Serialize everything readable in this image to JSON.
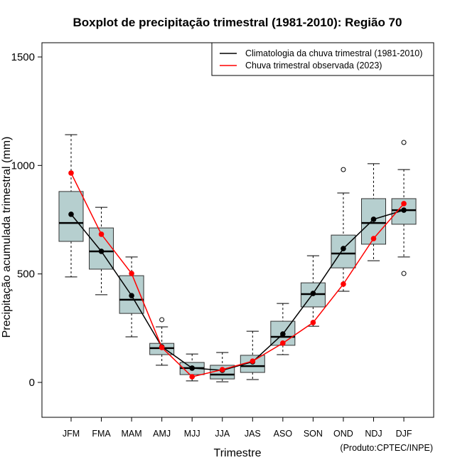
{
  "chart_data": {
    "type": "boxplot",
    "title": "Boxplot de precipitação trimestral (1981-2010): Região 70",
    "xlabel": "Trimestre",
    "ylabel": "Precipitação acumulada trimestral (mm)",
    "ylim": [
      -160,
      1560
    ],
    "yticks": [
      0,
      500,
      1000,
      1500
    ],
    "ytick_labels": [
      "0",
      "500",
      "1000",
      "1500"
    ],
    "grid": false,
    "legend_position": "top-right",
    "credit": "(Produto:CPTEC/INPE)",
    "categories": [
      "JFM",
      "FMA",
      "MAM",
      "AMJ",
      "MJJ",
      "JJA",
      "JAS",
      "ASO",
      "SON",
      "OND",
      "NDJ",
      "DJF"
    ],
    "boxes": [
      {
        "category": "JFM",
        "whisker_low": 486,
        "q1": 650,
        "median": 735,
        "q3": 880,
        "whisker_high": 1142,
        "outliers": []
      },
      {
        "category": "FMA",
        "whisker_low": 404,
        "q1": 522,
        "median": 604,
        "q3": 712,
        "whisker_high": 807,
        "outliers": []
      },
      {
        "category": "MAM",
        "whisker_low": 210,
        "q1": 318,
        "median": 381,
        "q3": 492,
        "whisker_high": 578,
        "outliers": []
      },
      {
        "category": "AMJ",
        "whisker_low": 79,
        "q1": 128,
        "median": 158,
        "q3": 180,
        "whisker_high": 256,
        "outliers": [
          289
        ]
      },
      {
        "category": "MJJ",
        "whisker_low": 7,
        "q1": 36,
        "median": 66,
        "q3": 92,
        "whisker_high": 131,
        "outliers": []
      },
      {
        "category": "JJA",
        "whisker_low": 3,
        "q1": 16,
        "median": 36,
        "q3": 79,
        "whisker_high": 138,
        "outliers": []
      },
      {
        "category": "JAS",
        "whisker_low": 13,
        "q1": 46,
        "median": 75,
        "q3": 125,
        "whisker_high": 236,
        "outliers": []
      },
      {
        "category": "ASO",
        "whisker_low": 128,
        "q1": 171,
        "median": 210,
        "q3": 282,
        "whisker_high": 364,
        "outliers": []
      },
      {
        "category": "SON",
        "whisker_low": 259,
        "q1": 348,
        "median": 407,
        "q3": 459,
        "whisker_high": 584,
        "outliers": []
      },
      {
        "category": "OND",
        "whisker_low": 420,
        "q1": 528,
        "median": 594,
        "q3": 679,
        "whisker_high": 873,
        "outliers": [
          981
        ]
      },
      {
        "category": "NDJ",
        "whisker_low": 561,
        "q1": 637,
        "median": 735,
        "q3": 847,
        "whisker_high": 1008,
        "outliers": []
      },
      {
        "category": "DJF",
        "whisker_low": 578,
        "q1": 729,
        "median": 794,
        "q3": 847,
        "whisker_high": 981,
        "outliers": [
          1106,
          502
        ]
      }
    ],
    "series": [
      {
        "name": "Climatologia da chuva trimestral (1981-2010)",
        "color": "#000000",
        "values": [
          775,
          604,
          400,
          164,
          66,
          56,
          95,
          223,
          410,
          617,
          752,
          794
        ]
      },
      {
        "name": "Chuva trimestral observada (2023)",
        "color": "#ff0000",
        "values": [
          965,
          683,
          502,
          161,
          26,
          59,
          98,
          181,
          276,
          453,
          663,
          824
        ]
      }
    ],
    "box_fill": "#b6cfcf"
  }
}
